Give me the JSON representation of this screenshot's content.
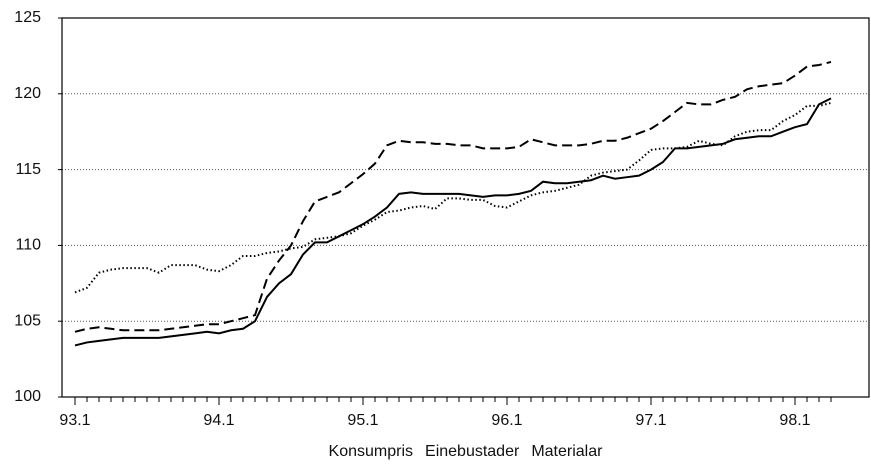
{
  "chart_data": {
    "type": "line",
    "categories": [
      "93.1",
      null,
      null,
      null,
      null,
      null,
      null,
      null,
      null,
      null,
      null,
      null,
      "94.1",
      null,
      null,
      null,
      null,
      null,
      null,
      null,
      null,
      null,
      null,
      null,
      "95.1",
      null,
      null,
      null,
      null,
      null,
      null,
      null,
      null,
      null,
      null,
      null,
      "96.1",
      null,
      null,
      null,
      null,
      null,
      null,
      null,
      null,
      null,
      null,
      null,
      "97.1",
      null,
      null,
      null,
      null,
      null,
      null,
      null,
      null,
      null,
      null,
      null,
      "98.1",
      null,
      null,
      null
    ],
    "series": [
      {
        "name": "Konsumpris",
        "color": "#000000",
        "dash": "solid",
        "values": [
          103.4,
          103.6,
          103.7,
          103.8,
          103.9,
          103.9,
          103.9,
          103.9,
          104.0,
          104.1,
          104.2,
          104.3,
          104.2,
          104.4,
          104.5,
          105.0,
          106.6,
          107.5,
          108.1,
          109.4,
          110.2,
          110.2,
          110.6,
          111.0,
          111.4,
          111.9,
          112.5,
          113.4,
          113.5,
          113.4,
          113.4,
          113.4,
          113.4,
          113.3,
          113.2,
          113.3,
          113.3,
          113.4,
          113.6,
          114.2,
          114.1,
          114.1,
          114.2,
          114.3,
          114.6,
          114.4,
          114.5,
          114.6,
          115.0,
          115.5,
          116.4,
          116.4,
          116.5,
          116.6,
          116.7,
          117.0,
          117.1,
          117.2,
          117.2,
          117.5,
          117.8,
          118.0,
          119.3,
          119.7
        ]
      },
      {
        "name": "Einebustader",
        "color": "#000000",
        "dash": "dashed",
        "values": [
          104.3,
          104.5,
          104.6,
          104.5,
          104.4,
          104.4,
          104.4,
          104.4,
          104.5,
          104.6,
          104.7,
          104.8,
          104.8,
          105.0,
          105.2,
          105.4,
          107.8,
          109.0,
          110.0,
          111.6,
          112.9,
          113.2,
          113.5,
          114.1,
          114.7,
          115.4,
          116.6,
          116.9,
          116.8,
          116.8,
          116.7,
          116.7,
          116.6,
          116.6,
          116.4,
          116.4,
          116.4,
          116.5,
          117.0,
          116.8,
          116.6,
          116.6,
          116.6,
          116.7,
          116.9,
          116.9,
          117.1,
          117.4,
          117.7,
          118.2,
          118.8,
          119.4,
          119.3,
          119.3,
          119.6,
          119.8,
          120.3,
          120.5,
          120.6,
          120.7,
          121.2,
          121.8,
          121.9,
          122.1
        ]
      },
      {
        "name": "Materialar",
        "color": "#000000",
        "dash": "dotted",
        "values": [
          106.9,
          107.2,
          108.2,
          108.4,
          108.5,
          108.5,
          108.5,
          108.2,
          108.7,
          108.7,
          108.7,
          108.4,
          108.3,
          108.7,
          109.3,
          109.3,
          109.5,
          109.6,
          109.8,
          109.9,
          110.4,
          110.5,
          110.6,
          110.8,
          111.3,
          111.7,
          112.2,
          112.3,
          112.5,
          112.6,
          112.4,
          113.1,
          113.1,
          113.0,
          113.0,
          112.6,
          112.5,
          112.9,
          113.3,
          113.5,
          113.6,
          113.8,
          114.0,
          114.6,
          114.8,
          114.9,
          115.0,
          115.6,
          116.3,
          116.4,
          116.4,
          116.5,
          116.9,
          116.7,
          116.6,
          117.2,
          117.5,
          117.6,
          117.6,
          118.2,
          118.6,
          119.2,
          119.2,
          119.4
        ]
      }
    ],
    "ylim": [
      100,
      125
    ],
    "yticks": [
      100,
      105,
      110,
      115,
      120,
      125
    ],
    "grid": true
  }
}
